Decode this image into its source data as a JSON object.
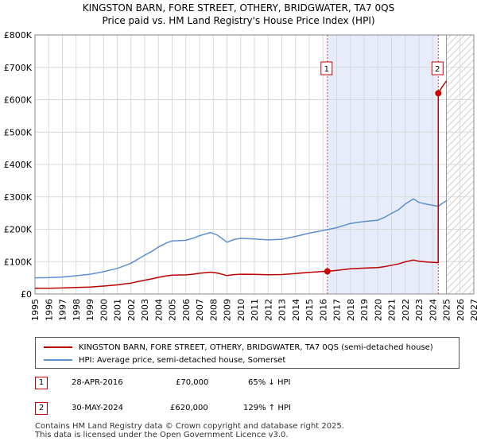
{
  "chart_data": {
    "type": "line",
    "title": "KINGSTON BARN, FORE STREET, OTHERY, BRIDGWATER, TA7 0QS",
    "subtitle": "Price paid vs. HM Land Registry's House Price Index (HPI)",
    "xlim": [
      1995,
      2027
    ],
    "ylim": [
      0,
      800000
    ],
    "x_ticks": [
      "1995",
      "1996",
      "1997",
      "1998",
      "1999",
      "2000",
      "2001",
      "2002",
      "2003",
      "2004",
      "2005",
      "2006",
      "2007",
      "2008",
      "2009",
      "2010",
      "2011",
      "2012",
      "2013",
      "2014",
      "2015",
      "2016",
      "2017",
      "2018",
      "2019",
      "2020",
      "2021",
      "2022",
      "2023",
      "2024",
      "2025",
      "2026",
      "2027"
    ],
    "y_ticks": [
      {
        "value": 0,
        "label": "£0"
      },
      {
        "value": 100000,
        "label": "£100K"
      },
      {
        "value": 200000,
        "label": "£200K"
      },
      {
        "value": 300000,
        "label": "£300K"
      },
      {
        "value": 400000,
        "label": "£400K"
      },
      {
        "value": 500000,
        "label": "£500K"
      },
      {
        "value": 600000,
        "label": "£600K"
      },
      {
        "value": 700000,
        "label": "£700K"
      },
      {
        "value": 800000,
        "label": "£800K"
      }
    ],
    "grid": true,
    "shaded_span": {
      "from": 2016.32,
      "to": 2024.41
    },
    "hatched_from": 2025.0,
    "series": [
      {
        "name": "HPI: Average price, semi-detached house, Somerset",
        "color": "#5b8fd0",
        "points": [
          [
            1995,
            50000
          ],
          [
            1996,
            50500
          ],
          [
            1997,
            52500
          ],
          [
            1998,
            56500
          ],
          [
            1999,
            61000
          ],
          [
            2000,
            69000
          ],
          [
            2001,
            79000
          ],
          [
            2002,
            95000
          ],
          [
            2003,
            120000
          ],
          [
            2003.5,
            131000
          ],
          [
            2004,
            145000
          ],
          [
            2004.6,
            158000
          ],
          [
            2005,
            164000
          ],
          [
            2006,
            166000
          ],
          [
            2006.5,
            172000
          ],
          [
            2007,
            180000
          ],
          [
            2007.8,
            190000
          ],
          [
            2008.3,
            182000
          ],
          [
            2009,
            160000
          ],
          [
            2009.5,
            168000
          ],
          [
            2010,
            172000
          ],
          [
            2011,
            170000
          ],
          [
            2012,
            167000
          ],
          [
            2013,
            169000
          ],
          [
            2014,
            178000
          ],
          [
            2015,
            188000
          ],
          [
            2016,
            196000
          ],
          [
            2017,
            205000
          ],
          [
            2018,
            218000
          ],
          [
            2019,
            224000
          ],
          [
            2020,
            228000
          ],
          [
            2020.5,
            237000
          ],
          [
            2021,
            249000
          ],
          [
            2021.5,
            260000
          ],
          [
            2022,
            278000
          ],
          [
            2022.6,
            294000
          ],
          [
            2023,
            283000
          ],
          [
            2023.6,
            277000
          ],
          [
            2024,
            274000
          ],
          [
            2024.4,
            271000
          ],
          [
            2024.7,
            280000
          ],
          [
            2025,
            288000
          ]
        ]
      },
      {
        "name": "KINGSTON BARN, FORE STREET, OTHERY, BRIDGWATER, TA7 0QS (semi-detached house)",
        "color": "#bb0000",
        "points": [
          [
            1995,
            17800
          ],
          [
            1996,
            17900
          ],
          [
            1997,
            18700
          ],
          [
            1998,
            20100
          ],
          [
            1999,
            21700
          ],
          [
            2000,
            24600
          ],
          [
            2001,
            28100
          ],
          [
            2002,
            33800
          ],
          [
            2003,
            42700
          ],
          [
            2003.5,
            46600
          ],
          [
            2004,
            51600
          ],
          [
            2004.6,
            56200
          ],
          [
            2005,
            58400
          ],
          [
            2006,
            59100
          ],
          [
            2006.5,
            61200
          ],
          [
            2007,
            64100
          ],
          [
            2007.8,
            67600
          ],
          [
            2008.3,
            64800
          ],
          [
            2009,
            56900
          ],
          [
            2009.5,
            59800
          ],
          [
            2010,
            61200
          ],
          [
            2011,
            60500
          ],
          [
            2012,
            59400
          ],
          [
            2013,
            60100
          ],
          [
            2014,
            63300
          ],
          [
            2015,
            66900
          ],
          [
            2016,
            69700
          ],
          [
            2016.32,
            70000
          ],
          [
            2017,
            73200
          ],
          [
            2018,
            77800
          ],
          [
            2019,
            80000
          ],
          [
            2020,
            81400
          ],
          [
            2020.5,
            84600
          ],
          [
            2021,
            88900
          ],
          [
            2021.5,
            92800
          ],
          [
            2022,
            99300
          ],
          [
            2022.6,
            105000
          ],
          [
            2023,
            101000
          ],
          [
            2023.6,
            98900
          ],
          [
            2024,
            97800
          ],
          [
            2024.4,
            96800
          ],
          [
            2024.41,
            620000
          ],
          [
            2024.7,
            640000
          ],
          [
            2025,
            658000
          ]
        ]
      }
    ],
    "markers": [
      {
        "id": "1",
        "x": 2016.32,
        "y": 70000
      },
      {
        "id": "2",
        "x": 2024.41,
        "y": 620000
      }
    ]
  },
  "legend": {
    "property_label": "KINGSTON BARN, FORE STREET, OTHERY, BRIDGWATER, TA7 0QS (semi-detached house)",
    "hpi_label": "HPI: Average price, semi-detached house, Somerset",
    "property_color": "#bb0000",
    "hpi_color": "#5b8fd0"
  },
  "transactions": [
    {
      "id": "1",
      "date": "28-APR-2016",
      "price": "£70,000",
      "hpi": "65% ↓ HPI"
    },
    {
      "id": "2",
      "date": "30-MAY-2024",
      "price": "£620,000",
      "hpi": "129% ↑ HPI"
    }
  ],
  "footer": {
    "line1": "Contains HM Land Registry data © Crown copyright and database right 2025.",
    "line2": "This data is licensed under the Open Government Licence v3.0."
  }
}
